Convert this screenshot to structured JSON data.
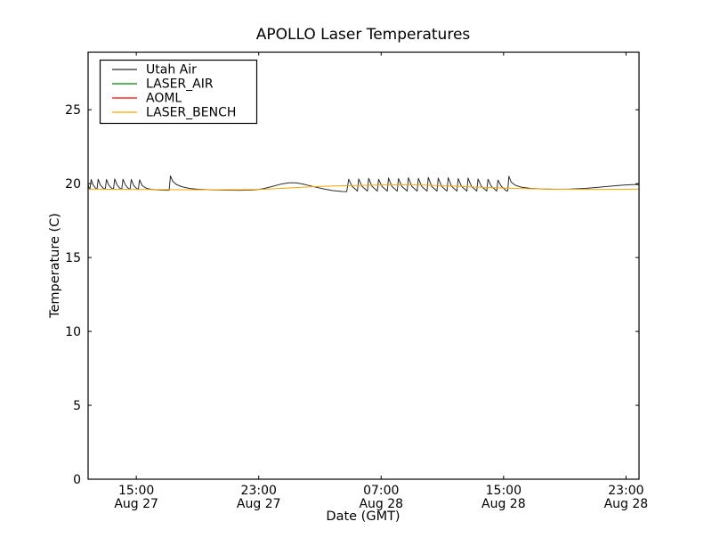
{
  "chart_data": {
    "type": "line",
    "title": "APOLLO Laser Temperatures",
    "xlabel": "Date (GMT)",
    "ylabel": "Temperature (C)",
    "x_unit": "hours since ~11:50 Aug 27 GMT",
    "xlim": [
      0,
      36
    ],
    "ylim": [
      0,
      28.9
    ],
    "grid": false,
    "legend_position": "upper left",
    "xticks": [
      {
        "v": 3.15,
        "line1": "15:00",
        "line2": "Aug 27"
      },
      {
        "v": 11.15,
        "line1": "23:00",
        "line2": "Aug 27"
      },
      {
        "v": 19.15,
        "line1": "07:00",
        "line2": "Aug 28"
      },
      {
        "v": 27.15,
        "line1": "15:00",
        "line2": "Aug 28"
      },
      {
        "v": 35.15,
        "line1": "23:00",
        "line2": "Aug 28"
      }
    ],
    "yticks": [
      {
        "v": 0,
        "label": "0"
      },
      {
        "v": 5,
        "label": "5"
      },
      {
        "v": 10,
        "label": "10"
      },
      {
        "v": 15,
        "label": "15"
      },
      {
        "v": 20,
        "label": "20"
      },
      {
        "v": 25,
        "label": "25"
      }
    ],
    "series": [
      {
        "name": "Utah Air",
        "color": "#2b2b2b",
        "opacity": 1,
        "points": [
          [
            0,
            19.93
          ],
          [
            0.06,
            19.72
          ],
          [
            0.12,
            19.62
          ],
          [
            0.2,
            20.28
          ],
          [
            0.34,
            19.9
          ],
          [
            0.48,
            19.7
          ],
          [
            0.58,
            19.62
          ],
          [
            0.66,
            20.3
          ],
          [
            0.8,
            19.9
          ],
          [
            0.98,
            19.7
          ],
          [
            1.12,
            19.62
          ],
          [
            1.2,
            20.28
          ],
          [
            1.35,
            19.9
          ],
          [
            1.52,
            19.7
          ],
          [
            1.66,
            19.62
          ],
          [
            1.74,
            20.32
          ],
          [
            1.9,
            19.9
          ],
          [
            2.06,
            19.7
          ],
          [
            2.2,
            19.62
          ],
          [
            2.28,
            20.3
          ],
          [
            2.44,
            19.9
          ],
          [
            2.6,
            19.7
          ],
          [
            2.74,
            19.62
          ],
          [
            2.82,
            20.28
          ],
          [
            2.98,
            19.88
          ],
          [
            3.14,
            19.7
          ],
          [
            3.28,
            19.6
          ],
          [
            3.36,
            20.26
          ],
          [
            3.54,
            19.86
          ],
          [
            3.78,
            19.7
          ],
          [
            4.1,
            19.62
          ],
          [
            4.5,
            19.58
          ],
          [
            5.0,
            19.56
          ],
          [
            5.3,
            19.55
          ],
          [
            5.38,
            20.52
          ],
          [
            5.52,
            20.18
          ],
          [
            5.75,
            19.95
          ],
          [
            6.1,
            19.8
          ],
          [
            6.6,
            19.68
          ],
          [
            7.2,
            19.62
          ],
          [
            8.0,
            19.58
          ],
          [
            9.0,
            19.56
          ],
          [
            10.0,
            19.55
          ],
          [
            10.8,
            19.57
          ],
          [
            11.4,
            19.65
          ],
          [
            12.0,
            19.8
          ],
          [
            12.6,
            19.97
          ],
          [
            13.1,
            20.06
          ],
          [
            13.6,
            20.05
          ],
          [
            14.2,
            19.93
          ],
          [
            14.8,
            19.78
          ],
          [
            15.4,
            19.64
          ],
          [
            16.0,
            19.53
          ],
          [
            16.6,
            19.47
          ],
          [
            16.9,
            19.46
          ],
          [
            17.03,
            20.3
          ],
          [
            17.25,
            19.82
          ],
          [
            17.6,
            19.5
          ],
          [
            17.68,
            20.32
          ],
          [
            17.9,
            19.82
          ],
          [
            18.25,
            19.5
          ],
          [
            18.33,
            20.36
          ],
          [
            18.55,
            19.82
          ],
          [
            18.9,
            19.5
          ],
          [
            18.98,
            20.3
          ],
          [
            19.2,
            19.82
          ],
          [
            19.55,
            19.5
          ],
          [
            19.63,
            20.38
          ],
          [
            19.85,
            19.82
          ],
          [
            20.2,
            19.5
          ],
          [
            20.28,
            20.34
          ],
          [
            20.5,
            19.82
          ],
          [
            20.85,
            19.5
          ],
          [
            20.93,
            20.4
          ],
          [
            21.15,
            19.82
          ],
          [
            21.5,
            19.5
          ],
          [
            21.58,
            20.36
          ],
          [
            21.8,
            19.82
          ],
          [
            22.15,
            19.5
          ],
          [
            22.23,
            20.42
          ],
          [
            22.45,
            19.82
          ],
          [
            22.8,
            19.5
          ],
          [
            22.88,
            20.38
          ],
          [
            23.1,
            19.82
          ],
          [
            23.45,
            19.5
          ],
          [
            23.53,
            20.4
          ],
          [
            23.75,
            19.82
          ],
          [
            24.1,
            19.5
          ],
          [
            24.18,
            20.34
          ],
          [
            24.4,
            19.82
          ],
          [
            24.75,
            19.5
          ],
          [
            24.83,
            20.38
          ],
          [
            25.05,
            19.82
          ],
          [
            25.4,
            19.5
          ],
          [
            25.48,
            20.32
          ],
          [
            25.7,
            19.82
          ],
          [
            26.05,
            19.5
          ],
          [
            26.13,
            20.3
          ],
          [
            26.35,
            19.82
          ],
          [
            26.7,
            19.5
          ],
          [
            26.78,
            20.24
          ],
          [
            27.0,
            19.82
          ],
          [
            27.35,
            19.5
          ],
          [
            27.42,
            19.52
          ],
          [
            27.5,
            20.5
          ],
          [
            27.65,
            20.1
          ],
          [
            27.9,
            19.9
          ],
          [
            28.3,
            19.76
          ],
          [
            28.9,
            19.68
          ],
          [
            29.6,
            19.64
          ],
          [
            30.5,
            19.62
          ],
          [
            31.5,
            19.63
          ],
          [
            32.5,
            19.68
          ],
          [
            33.5,
            19.77
          ],
          [
            34.3,
            19.85
          ],
          [
            35.0,
            19.9
          ],
          [
            35.6,
            19.93
          ],
          [
            36,
            19.93
          ]
        ]
      },
      {
        "name": "LASER_AIR",
        "color": "#008000",
        "opacity": 1,
        "points": [
          [
            0,
            0
          ],
          [
            36,
            0
          ]
        ]
      },
      {
        "name": "AOML",
        "color": "#ff0000",
        "opacity": 0.8,
        "points": [
          [
            0,
            0
          ],
          [
            36,
            0
          ]
        ]
      },
      {
        "name": "LASER_BENCH",
        "color": "#ffa500",
        "opacity": 1,
        "points": [
          [
            0,
            19.63
          ],
          [
            2,
            19.62
          ],
          [
            4,
            19.6
          ],
          [
            6,
            19.59
          ],
          [
            8,
            19.58
          ],
          [
            10,
            19.59
          ],
          [
            11.5,
            19.62
          ],
          [
            13,
            19.7
          ],
          [
            14.5,
            19.78
          ],
          [
            16,
            19.84
          ],
          [
            17.5,
            19.88
          ],
          [
            19,
            19.91
          ],
          [
            20.5,
            19.92
          ],
          [
            22,
            19.9
          ],
          [
            23.5,
            19.85
          ],
          [
            25,
            19.78
          ],
          [
            26.5,
            19.72
          ],
          [
            28,
            19.67
          ],
          [
            29.5,
            19.64
          ],
          [
            31,
            19.62
          ],
          [
            33,
            19.61
          ],
          [
            35,
            19.62
          ],
          [
            36,
            19.63
          ]
        ]
      }
    ]
  }
}
